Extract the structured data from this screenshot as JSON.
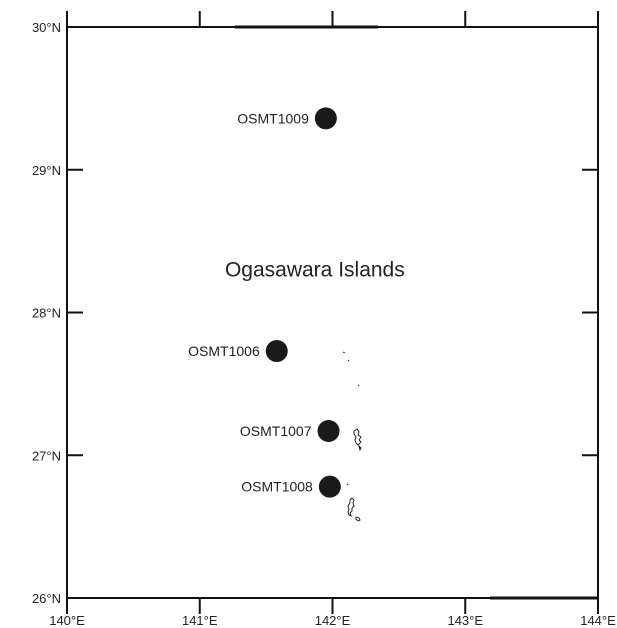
{
  "map": {
    "region_label": "Ogasawara Islands",
    "lon_range": [
      140,
      144
    ],
    "lat_range": [
      26,
      30
    ],
    "lon_ticks": [
      {
        "value": 140,
        "label": "140°E"
      },
      {
        "value": 141,
        "label": "141°E"
      },
      {
        "value": 142,
        "label": "142°E"
      },
      {
        "value": 143,
        "label": "143°E"
      },
      {
        "value": 144,
        "label": "144°E"
      }
    ],
    "lat_ticks": [
      {
        "value": 30,
        "label": "30°N"
      },
      {
        "value": 29,
        "label": "29°N"
      },
      {
        "value": 28,
        "label": "28°N"
      },
      {
        "value": 27,
        "label": "27°N"
      },
      {
        "value": 26,
        "label": "26°N"
      }
    ],
    "stations": [
      {
        "name": "OSMT1009",
        "lon": 141.95,
        "lat": 29.36
      },
      {
        "name": "OSMT1006",
        "lon": 141.58,
        "lat": 27.73
      },
      {
        "name": "OSMT1007",
        "lon": 141.97,
        "lat": 27.17
      },
      {
        "name": "OSMT1008",
        "lon": 141.98,
        "lat": 26.78
      }
    ],
    "region_label_position": {
      "lon": 141.95,
      "lat": 28.3
    },
    "colors": {
      "frame": "#111111",
      "marker": "#1a1a1a",
      "text": "#222222"
    }
  }
}
